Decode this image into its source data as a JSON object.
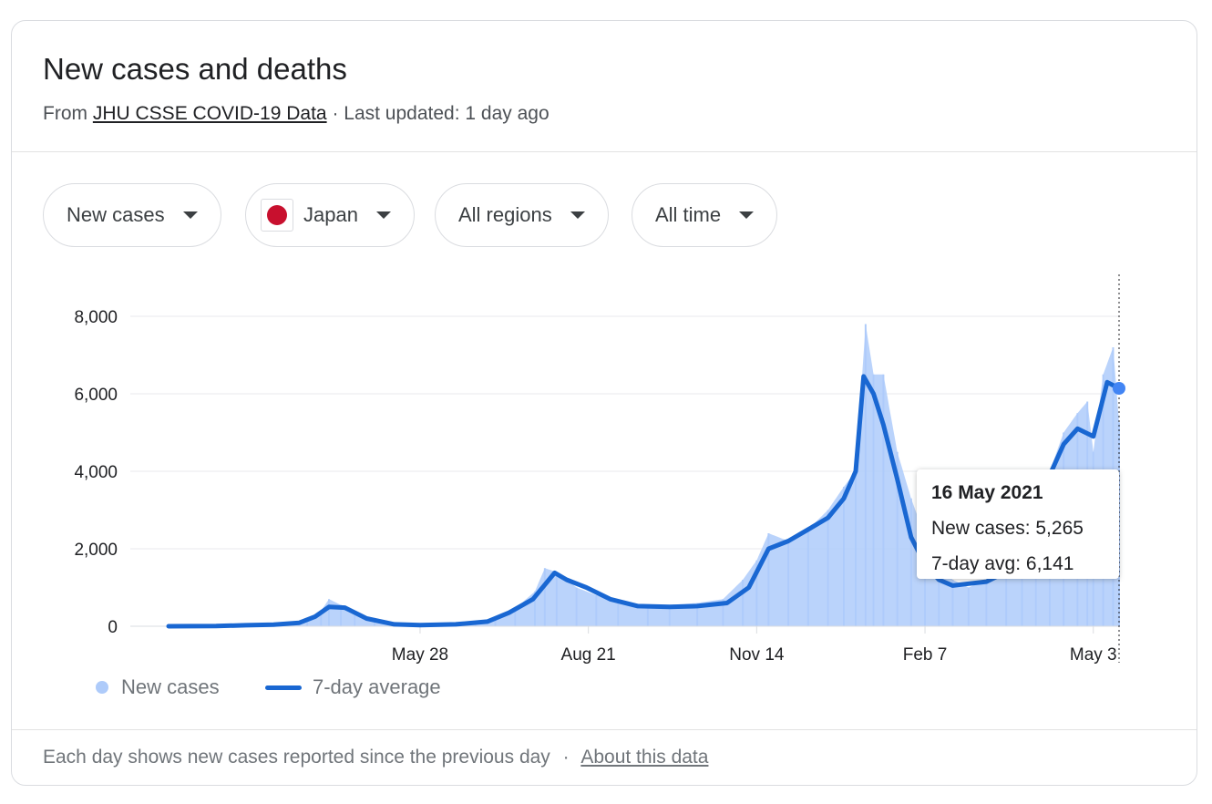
{
  "header": {
    "title": "New cases and deaths",
    "source_prefix": "From",
    "source_link": "JHU CSSE COVID-19 Data",
    "separator": "·",
    "updated": "Last updated: 1 day ago"
  },
  "filters": [
    {
      "label": "New cases",
      "icon": "caret-down-icon"
    },
    {
      "label": "Japan",
      "icon": "caret-down-icon",
      "flag": "japan-flag-icon"
    },
    {
      "label": "All regions",
      "icon": "caret-down-icon"
    },
    {
      "label": "All time",
      "icon": "caret-down-icon"
    }
  ],
  "tooltip": {
    "date": "16 May 2021",
    "new_cases": "New cases: 5,265",
    "avg": "7-day avg: 6,141"
  },
  "legend": {
    "cases": "New cases",
    "avg": "7-day average"
  },
  "footer": {
    "note": "Each day shows new cases reported since the previous day",
    "separator": "·",
    "link": "About this data"
  },
  "colors": {
    "bars": "#aecbfa",
    "line": "#1967d2",
    "grid": "#e8eaed",
    "marker": "#4285f4",
    "flag": "#c8102e"
  },
  "chart_data": {
    "type": "bar",
    "overlay": "line",
    "x_scale": "date",
    "ylim": [
      0,
      8000
    ],
    "yticks": [
      0,
      2000,
      4000,
      6000,
      8000
    ],
    "ytick_labels": [
      "0",
      "2,000",
      "4,000",
      "6,000",
      "8,000"
    ],
    "xticks": [
      "2020-05-28",
      "2020-08-21",
      "2020-11-14",
      "2021-02-07",
      "2021-05-03"
    ],
    "xtick_labels": [
      "May 28",
      "Aug 21",
      "Nov 14",
      "Feb 7",
      "May 3"
    ],
    "x_start": "2020-01-22",
    "x_end": "2021-05-16",
    "series": [
      {
        "name": "New cases",
        "kind": "bar",
        "points": [
          [
            "2020-01-22",
            0
          ],
          [
            "2020-02-10",
            10
          ],
          [
            "2020-03-01",
            30
          ],
          [
            "2020-03-15",
            40
          ],
          [
            "2020-03-25",
            80
          ],
          [
            "2020-04-01",
            200
          ],
          [
            "2020-04-08",
            400
          ],
          [
            "2020-04-12",
            700
          ],
          [
            "2020-04-18",
            550
          ],
          [
            "2020-04-25",
            400
          ],
          [
            "2020-05-05",
            150
          ],
          [
            "2020-05-15",
            40
          ],
          [
            "2020-05-28",
            30
          ],
          [
            "2020-06-10",
            40
          ],
          [
            "2020-06-25",
            90
          ],
          [
            "2020-07-05",
            250
          ],
          [
            "2020-07-15",
            450
          ],
          [
            "2020-07-25",
            900
          ],
          [
            "2020-07-30",
            1500
          ],
          [
            "2020-08-05",
            1400
          ],
          [
            "2020-08-15",
            1000
          ],
          [
            "2020-08-25",
            800
          ],
          [
            "2020-09-05",
            600
          ],
          [
            "2020-09-20",
            500
          ],
          [
            "2020-10-01",
            550
          ],
          [
            "2020-10-15",
            600
          ],
          [
            "2020-10-28",
            700
          ],
          [
            "2020-11-07",
            1200
          ],
          [
            "2020-11-14",
            1700
          ],
          [
            "2020-11-20",
            2400
          ],
          [
            "2020-11-30",
            2200
          ],
          [
            "2020-12-10",
            2500
          ],
          [
            "2020-12-20",
            3000
          ],
          [
            "2020-12-28",
            3600
          ],
          [
            "2021-01-03",
            4000
          ],
          [
            "2021-01-08",
            7800
          ],
          [
            "2021-01-12",
            6500
          ],
          [
            "2021-01-17",
            6500
          ],
          [
            "2021-01-24",
            4500
          ],
          [
            "2021-01-31",
            3300
          ],
          [
            "2021-02-07",
            2300
          ],
          [
            "2021-02-14",
            1600
          ],
          [
            "2021-02-21",
            1200
          ],
          [
            "2021-03-01",
            1000
          ],
          [
            "2021-03-10",
            1200
          ],
          [
            "2021-03-20",
            1400
          ],
          [
            "2021-03-28",
            2000
          ],
          [
            "2021-04-04",
            2800
          ],
          [
            "2021-04-11",
            4000
          ],
          [
            "2021-04-18",
            5000
          ],
          [
            "2021-04-25",
            5500
          ],
          [
            "2021-04-30",
            5800
          ],
          [
            "2021-05-03",
            4500
          ],
          [
            "2021-05-08",
            6500
          ],
          [
            "2021-05-13",
            7200
          ],
          [
            "2021-05-16",
            5265
          ]
        ]
      },
      {
        "name": "7-day average",
        "kind": "line",
        "points": [
          [
            "2020-01-22",
            0
          ],
          [
            "2020-02-15",
            5
          ],
          [
            "2020-03-01",
            25
          ],
          [
            "2020-03-15",
            40
          ],
          [
            "2020-03-28",
            90
          ],
          [
            "2020-04-05",
            250
          ],
          [
            "2020-04-12",
            500
          ],
          [
            "2020-04-20",
            480
          ],
          [
            "2020-05-01",
            200
          ],
          [
            "2020-05-15",
            50
          ],
          [
            "2020-05-28",
            30
          ],
          [
            "2020-06-15",
            50
          ],
          [
            "2020-07-01",
            120
          ],
          [
            "2020-07-12",
            350
          ],
          [
            "2020-07-24",
            700
          ],
          [
            "2020-08-04",
            1380
          ],
          [
            "2020-08-10",
            1200
          ],
          [
            "2020-08-20",
            1000
          ],
          [
            "2020-09-01",
            700
          ],
          [
            "2020-09-15",
            520
          ],
          [
            "2020-10-01",
            500
          ],
          [
            "2020-10-15",
            520
          ],
          [
            "2020-10-30",
            600
          ],
          [
            "2020-11-10",
            1000
          ],
          [
            "2020-11-20",
            2000
          ],
          [
            "2020-11-30",
            2200
          ],
          [
            "2020-12-10",
            2500
          ],
          [
            "2020-12-20",
            2800
          ],
          [
            "2020-12-28",
            3300
          ],
          [
            "2021-01-03",
            4000
          ],
          [
            "2021-01-07",
            6450
          ],
          [
            "2021-01-12",
            6000
          ],
          [
            "2021-01-17",
            5200
          ],
          [
            "2021-01-24",
            3800
          ],
          [
            "2021-01-31",
            2300
          ],
          [
            "2021-02-07",
            1600
          ],
          [
            "2021-02-14",
            1200
          ],
          [
            "2021-02-21",
            1050
          ],
          [
            "2021-03-01",
            1100
          ],
          [
            "2021-03-10",
            1150
          ],
          [
            "2021-03-20",
            1400
          ],
          [
            "2021-03-28",
            1900
          ],
          [
            "2021-04-04",
            2700
          ],
          [
            "2021-04-11",
            3900
          ],
          [
            "2021-04-18",
            4700
          ],
          [
            "2021-04-25",
            5100
          ],
          [
            "2021-05-03",
            4900
          ],
          [
            "2021-05-10",
            6300
          ],
          [
            "2021-05-16",
            6141
          ]
        ]
      }
    ]
  }
}
